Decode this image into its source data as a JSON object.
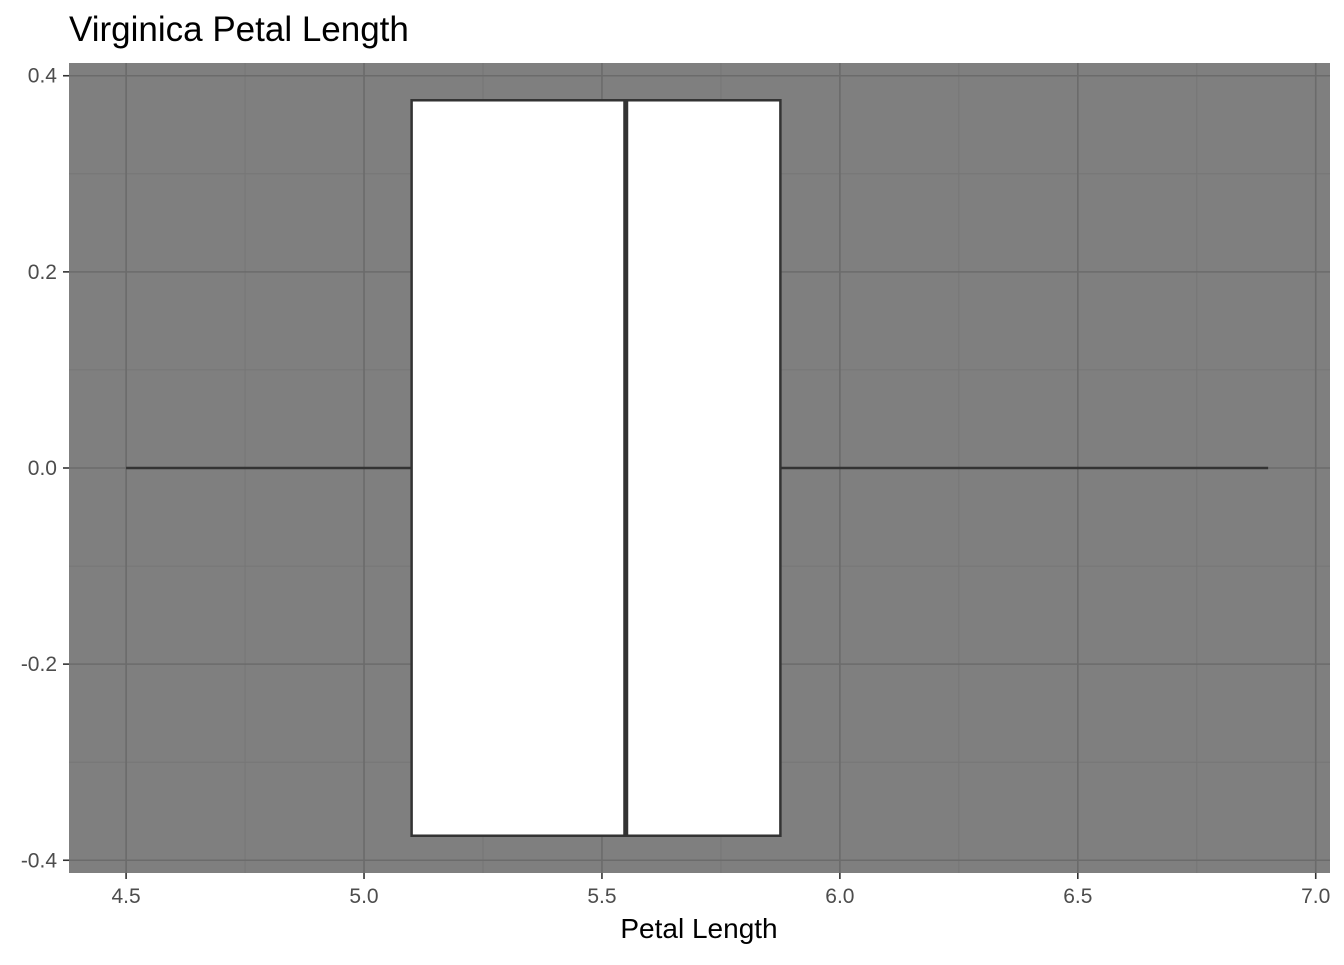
{
  "chart_data": {
    "type": "boxplot",
    "title": "Virginica Petal Length",
    "xlabel": "Petal Length",
    "ylabel": "",
    "xlim": [
      4.38,
      7.03
    ],
    "ylim": [
      -0.413,
      0.413
    ],
    "x_ticks": [
      4.5,
      5.0,
      5.5,
      6.0,
      6.5,
      7.0
    ],
    "x_tick_labels": [
      "4.5",
      "5.0",
      "5.5",
      "6.0",
      "6.5",
      "7.0"
    ],
    "y_ticks": [
      0.4,
      0.2,
      0.0,
      -0.2,
      -0.4
    ],
    "y_tick_labels": [
      "0.4",
      "0.2",
      "0.0",
      "-0.2",
      "-0.4"
    ],
    "grid": true,
    "box": {
      "min": 4.5,
      "q1": 5.1,
      "median": 5.55,
      "q3": 5.875,
      "max": 6.9,
      "y_center": 0.0,
      "half_width": 0.375
    },
    "colors": {
      "panel_background": "#7f7f7f",
      "grid_major": "#6b6b6b",
      "grid_minor": "#767676",
      "box_fill": "#ffffff",
      "box_stroke": "#333333"
    }
  }
}
